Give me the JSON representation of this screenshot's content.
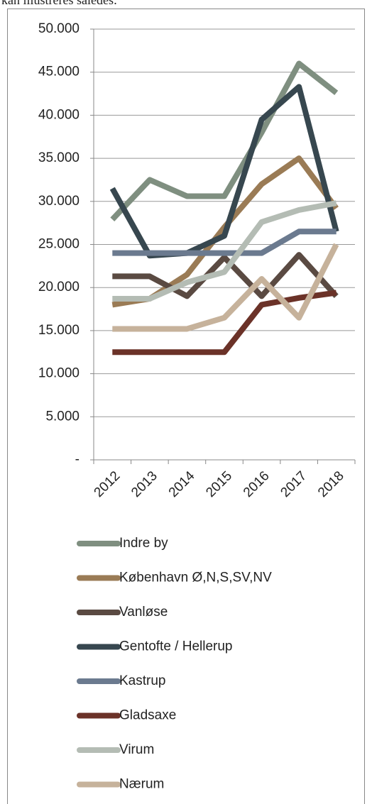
{
  "caption": "kan illustreres således:",
  "chart_data": {
    "type": "line",
    "categories": [
      "2012",
      "2013",
      "2014",
      "2015",
      "2016",
      "2017",
      "2018"
    ],
    "ylim": [
      0,
      50000
    ],
    "yticks": [
      {
        "value": 0,
        "label": "-"
      },
      {
        "value": 5000,
        "label": "5.000"
      },
      {
        "value": 10000,
        "label": "10.000"
      },
      {
        "value": 15000,
        "label": "15.000"
      },
      {
        "value": 20000,
        "label": "20.000"
      },
      {
        "value": 25000,
        "label": "25.000"
      },
      {
        "value": 30000,
        "label": "30.000"
      },
      {
        "value": 35000,
        "label": "35.000"
      },
      {
        "value": 40000,
        "label": "40.000"
      },
      {
        "value": 45000,
        "label": "45.000"
      },
      {
        "value": 50000,
        "label": "50.000"
      }
    ],
    "grid": true,
    "legend": "bottom",
    "series": [
      {
        "name": "Indre by",
        "color": "#7f8f80",
        "values": [
          27900,
          32500,
          30600,
          30600,
          38000,
          46000,
          42600
        ]
      },
      {
        "name": "København Ø,N,S,SV,NV",
        "color": "#9a7b55",
        "values": [
          18000,
          18700,
          21500,
          27000,
          32000,
          35000,
          29200
        ]
      },
      {
        "name": "Vanløse",
        "color": "#5a4a42",
        "values": [
          21300,
          21300,
          19000,
          23500,
          19000,
          23800,
          19000
        ]
      },
      {
        "name": "Gentofte / Hellerup",
        "color": "#37474f",
        "values": [
          31500,
          23700,
          24000,
          26000,
          39500,
          43300,
          26500
        ]
      },
      {
        "name": "Kastrup",
        "color": "#6b7a8f",
        "values": [
          24000,
          24000,
          24000,
          24000,
          24000,
          26500,
          26500
        ]
      },
      {
        "name": "Gladsaxe",
        "color": "#6b3228",
        "values": [
          12500,
          12500,
          12500,
          12500,
          18000,
          18800,
          19400
        ]
      },
      {
        "name": "Virum",
        "color": "#b4bcb4",
        "values": [
          18700,
          18700,
          20600,
          21800,
          27600,
          29000,
          29800
        ]
      },
      {
        "name": "Nærum",
        "color": "#c6b29b",
        "values": [
          15200,
          15200,
          15200,
          16500,
          21000,
          16500,
          25000
        ]
      }
    ]
  }
}
